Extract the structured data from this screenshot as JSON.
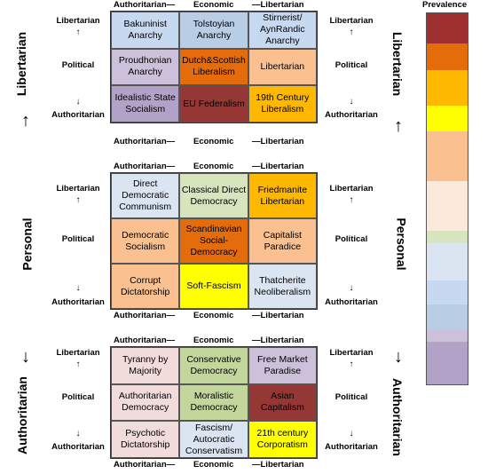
{
  "economic_axis": {
    "left": "Authoritarian—",
    "mid": "Economic",
    "right": "—Libertarian"
  },
  "political_axis": {
    "top": "Libertarian",
    "up_arrow": "↑",
    "mid": "Political",
    "down_arrow": "↓",
    "bottom": "Authoritarian"
  },
  "personal_axis": {
    "libertarian": "Libertarian",
    "personal": "Personal",
    "authoritarian": "Authoritarian",
    "arrow_up": "↑",
    "arrow_down": "↓"
  },
  "legend": {
    "title": "Prevalence",
    "colors": [
      "#9e3030",
      "#e46c0a",
      "#ffb800",
      "#ffff00",
      "#fac090",
      "#fde9d9",
      "#d7e4bd",
      "#dbe5f1",
      "#c6d9f1",
      "#b9cde5",
      "#ccc0da",
      "#b3a2c7"
    ]
  },
  "blocks": [
    {
      "cells": [
        {
          "label": "Bakuninist Anarchy",
          "color": "#c6d9f1"
        },
        {
          "label": "Tolstoyian Anarchy",
          "color": "#b9cde5"
        },
        {
          "label": "Stirnerist/ AynRandic Anarchy",
          "color": "#c6d9f1"
        },
        {
          "label": "Proudhonian Anarchy",
          "color": "#ccc0da"
        },
        {
          "label": "Dutch&Scottish Liberalism",
          "color": "#e46c0a"
        },
        {
          "label": "Libertarian",
          "color": "#fac090"
        },
        {
          "label": "Idealistic State Socialism",
          "color": "#b3a2c7"
        },
        {
          "label": "EU Federalism",
          "color": "#953735"
        },
        {
          "label": "19th Century Liberalism",
          "color": "#ffb800"
        }
      ]
    },
    {
      "cells": [
        {
          "label": "Direct Democratic Communism",
          "color": "#dbe5f1"
        },
        {
          "label": "Classical Direct Democracy",
          "color": "#d7e4bd"
        },
        {
          "label": "Friedmanite Libertarian",
          "color": "#ffb800"
        },
        {
          "label": "Democratic Socialism",
          "color": "#fac090"
        },
        {
          "label": "Scandinavian Social-Democracy",
          "color": "#e46c0a"
        },
        {
          "label": "Capitalist Paradice",
          "color": "#fac090"
        },
        {
          "label": "Corrupt Dictatorship",
          "color": "#fac090"
        },
        {
          "label": "Soft-Fascism",
          "color": "#ffff00"
        },
        {
          "label": "Thatcherite Neoliberalism",
          "color": "#dbe5f1"
        }
      ]
    },
    {
      "cells": [
        {
          "label": "Tyranny by Majority",
          "color": "#f2dcdb"
        },
        {
          "label": "Conservative Democracy",
          "color": "#c3d69b"
        },
        {
          "label": "Free Market Paradise",
          "color": "#ccc0da"
        },
        {
          "label": "Authoritarian Democracy",
          "color": "#f2dcdb"
        },
        {
          "label": "Moralistic Democracy",
          "color": "#c3d69b"
        },
        {
          "label": "Asian Capitalism",
          "color": "#953735"
        },
        {
          "label": "Psychotic Dictatorship",
          "color": "#f2dcdb"
        },
        {
          "label": "Fascism/ Autocratic Conservatism",
          "color": "#dbe5f1"
        },
        {
          "label": "21th century Corporatism",
          "color": "#ffff00"
        }
      ]
    }
  ]
}
